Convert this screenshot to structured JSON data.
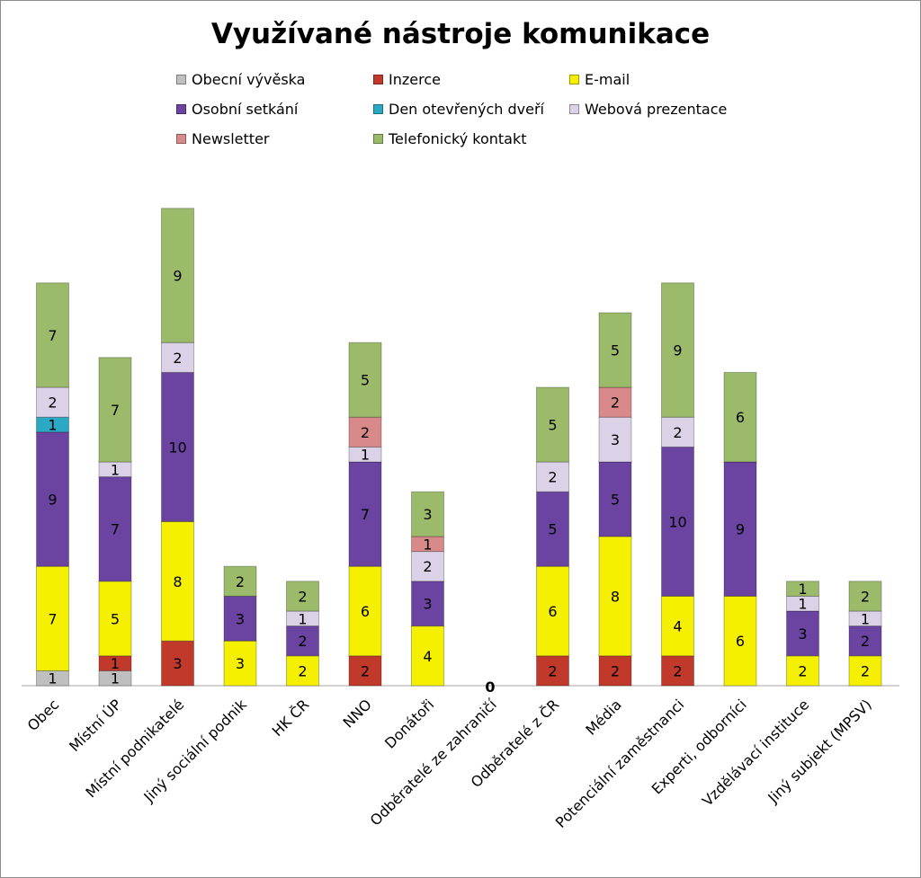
{
  "chart_data": {
    "type": "bar",
    "stacked": true,
    "title": "Využívané nástroje komunikace",
    "categories": [
      "Obec",
      "Místní ÚP",
      "Místní podnikatelé",
      "Jiný sociální podnik",
      "HK ČR",
      "NNO",
      "Donátoři",
      "Odběratelé ze zahraničí",
      "Odběratelé z ČR",
      "Média",
      "Potenciální zaměstnanci",
      "Experti, odborníci",
      "Vzdělávací instituce",
      "Jiný subjekt (MPSV)"
    ],
    "series": [
      {
        "name": "Obecní vývěska",
        "color": "#bfbfbf",
        "values": [
          1,
          1,
          0,
          0,
          0,
          0,
          0,
          0,
          0,
          0,
          0,
          0,
          0,
          0
        ]
      },
      {
        "name": "Inzerce",
        "color": "#c0392b",
        "values": [
          0,
          1,
          3,
          0,
          0,
          2,
          0,
          0,
          2,
          2,
          2,
          0,
          0,
          0
        ]
      },
      {
        "name": "E-mail",
        "color": "#f5f000",
        "values": [
          7,
          5,
          8,
          3,
          2,
          6,
          4,
          0,
          6,
          8,
          4,
          6,
          2,
          2
        ]
      },
      {
        "name": "Osobní setkání",
        "color": "#6a44a0",
        "values": [
          9,
          7,
          10,
          3,
          2,
          7,
          3,
          0,
          5,
          5,
          10,
          9,
          3,
          2
        ]
      },
      {
        "name": "Den otevřených dveří",
        "color": "#2aa8c4",
        "values": [
          1,
          0,
          0,
          0,
          0,
          0,
          0,
          0,
          0,
          0,
          0,
          0,
          0,
          0
        ]
      },
      {
        "name": "Webová prezentace",
        "color": "#dcd2e8",
        "values": [
          2,
          1,
          2,
          0,
          1,
          1,
          2,
          0,
          2,
          3,
          2,
          0,
          1,
          1
        ]
      },
      {
        "name": "Newsletter",
        "color": "#d88a8a",
        "values": [
          0,
          0,
          0,
          0,
          0,
          2,
          1,
          0,
          0,
          2,
          0,
          0,
          0,
          0
        ]
      },
      {
        "name": "Telefonický kontakt",
        "color": "#9bbb6a",
        "values": [
          7,
          7,
          9,
          2,
          2,
          5,
          3,
          0,
          5,
          5,
          9,
          6,
          1,
          2
        ]
      }
    ],
    "zero_label": "0",
    "legend_position": "top"
  }
}
